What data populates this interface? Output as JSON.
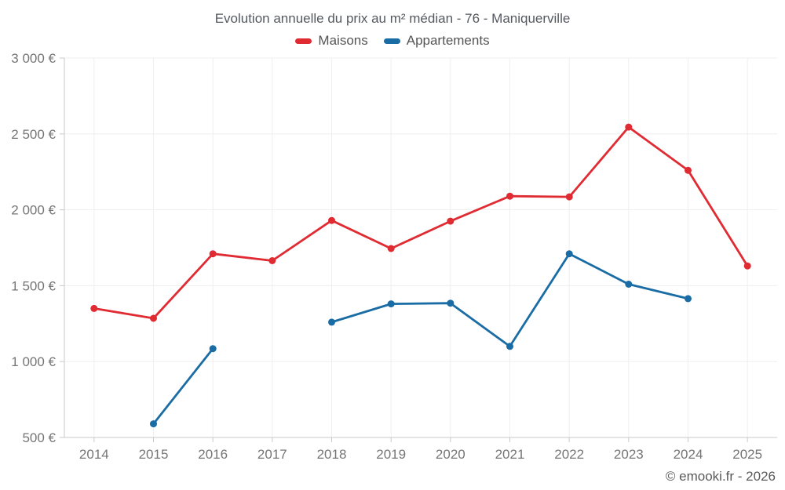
{
  "header": {
    "title": "Evolution annuelle du prix au m² médian - 76 - Maniquerville"
  },
  "legend": [
    {
      "label": "Maisons",
      "color": "#e02b33"
    },
    {
      "label": "Appartements",
      "color": "#1a6ca5"
    }
  ],
  "footer": {
    "credit": "© emooki.fr - 2026"
  },
  "colors": {
    "maisons": "#e02b33",
    "appartements": "#1a6ca5",
    "grid": "#efefef",
    "axis": "#c9c9c9",
    "tick_text": "#757575"
  },
  "chart_data": {
    "type": "line",
    "title": "Evolution annuelle du prix au m² médian - 76 - Maniquerville",
    "x": [
      2014,
      2015,
      2016,
      2017,
      2018,
      2019,
      2020,
      2021,
      2022,
      2023,
      2024,
      2025
    ],
    "series": [
      {
        "name": "Maisons",
        "color": "#e02b33",
        "values": [
          1350,
          1285,
          1710,
          1665,
          1930,
          1745,
          1925,
          2090,
          2085,
          2545,
          2260,
          1630
        ]
      },
      {
        "name": "Appartements",
        "color": "#1a6ca5",
        "values": [
          null,
          590,
          1085,
          null,
          1260,
          1380,
          1385,
          1100,
          1710,
          1510,
          1415,
          null
        ]
      }
    ],
    "xlabel": "",
    "ylabel": "",
    "ylim": [
      500,
      3000
    ],
    "yticks": [
      500,
      1000,
      1500,
      2000,
      2500,
      3000
    ],
    "ytick_suffix": " €",
    "grid": true,
    "legend_position": "top"
  }
}
